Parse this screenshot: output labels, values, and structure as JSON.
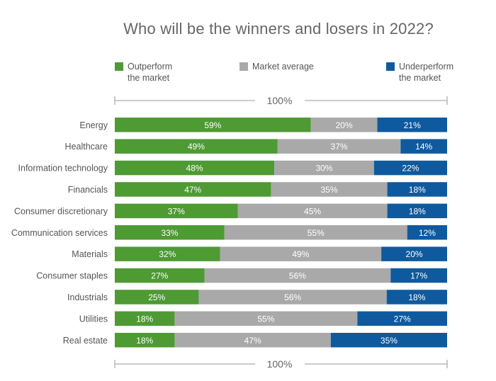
{
  "colors": {
    "outperform": "#4e9a33",
    "average": "#a9a9a9",
    "underperform": "#0f5a9e",
    "bar_text": "#ffffff",
    "scale_line": "#9a9a9a"
  },
  "chart_data": {
    "type": "bar",
    "orientation": "horizontal",
    "stacked": true,
    "title": "Who will be the winners and losers in 2022?",
    "scale_label": "100%",
    "categories": [
      "Energy",
      "Healthcare",
      "Information technology",
      "Financials",
      "Consumer discretionary",
      "Communication services",
      "Materials",
      "Consumer staples",
      "Industrials",
      "Utilities",
      "Real estate"
    ],
    "series": [
      {
        "name": "Outperform\nthe market",
        "key": "outperform",
        "values": [
          59,
          49,
          48,
          47,
          37,
          33,
          32,
          27,
          25,
          18,
          18
        ]
      },
      {
        "name": "Market average",
        "key": "average",
        "values": [
          20,
          37,
          30,
          35,
          45,
          55,
          49,
          56,
          56,
          55,
          47
        ]
      },
      {
        "name": "Underperform\nthe market",
        "key": "underperform",
        "values": [
          21,
          14,
          22,
          18,
          18,
          12,
          20,
          17,
          18,
          27,
          35
        ]
      }
    ],
    "value_suffix": "%",
    "legend_position": "top"
  }
}
